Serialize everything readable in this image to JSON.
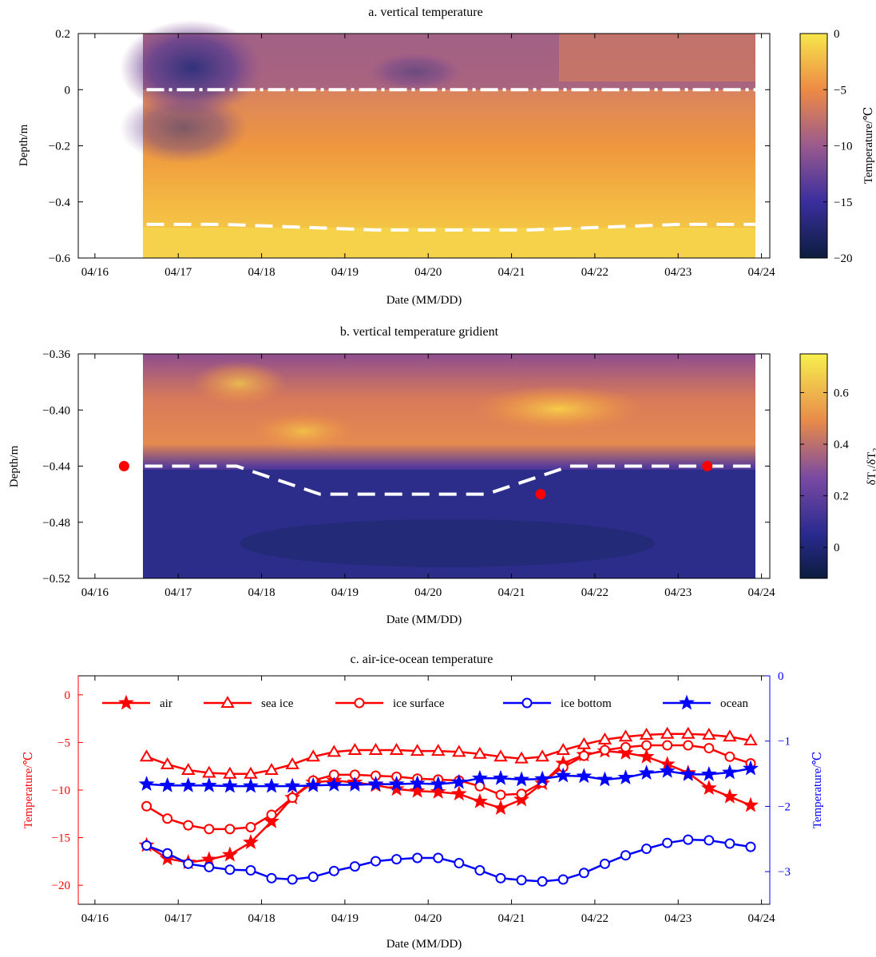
{
  "chart_data": [
    {
      "type": "heatmap",
      "title": "a. vertical temperature",
      "xlabel": "Date (MM/DD)",
      "ylabel": "Depth/m",
      "x_ticks": [
        "04/16",
        "04/17",
        "04/18",
        "04/19",
        "04/20",
        "04/21",
        "04/22",
        "04/23",
        "04/24"
      ],
      "y_ticks": [
        "0.2",
        "0",
        "−0.2",
        "−0.4",
        "−0.6"
      ],
      "ylim": [
        -0.6,
        0.2
      ],
      "data_range": [
        "04/16 15:00",
        "04/23 22:00"
      ],
      "colorbar": {
        "label": "Temperature/℃",
        "ticks": [
          "0",
          "−5",
          "−10",
          "−15",
          "−20"
        ],
        "range": [
          -20,
          0
        ]
      },
      "reference_lines": [
        {
          "style": "dash-dot",
          "color": "#ffffff",
          "depth": 0
        },
        {
          "style": "dashed",
          "color": "#ffffff",
          "depths": [
            -0.48,
            -0.48,
            -0.49,
            -0.5,
            -0.5,
            -0.5,
            -0.49,
            -0.48,
            -0.48
          ]
        }
      ]
    },
    {
      "type": "heatmap",
      "title": "b. vertical temperature gridient",
      "xlabel": "Date (MM/DD)",
      "ylabel": "Depth/m",
      "x_ticks": [
        "04/16",
        "04/17",
        "04/18",
        "04/19",
        "04/20",
        "04/21",
        "04/22",
        "04/23",
        "04/24"
      ],
      "y_ticks": [
        "−0.36",
        "−0.40",
        "−0.44",
        "−0.48",
        "−0.52"
      ],
      "ylim": [
        -0.52,
        -0.36
      ],
      "colorbar": {
        "label": "δT₁/δT₂",
        "ticks": [
          "0.6",
          "0.4",
          "0.2",
          "0"
        ],
        "range": [
          -0.12,
          0.75
        ]
      },
      "reference_lines": [
        {
          "style": "dashed",
          "color": "#ffffff",
          "points": [
            [
              16.6,
              -0.44
            ],
            [
              17.7,
              -0.44
            ],
            [
              18.7,
              -0.46
            ],
            [
              20.7,
              -0.46
            ],
            [
              21.7,
              -0.44
            ],
            [
              23.9,
              -0.44
            ]
          ]
        }
      ],
      "markers": [
        {
          "date": 16.35,
          "depth": -0.44,
          "color": "#ff0000"
        },
        {
          "date": 21.35,
          "depth": -0.46,
          "color": "#ff0000"
        },
        {
          "date": 23.35,
          "depth": -0.44,
          "color": "#ff0000"
        }
      ]
    },
    {
      "type": "line",
      "title": "c. air-ice-ocean temperature",
      "xlabel": "Date (MM/DD)",
      "ylabel_left": "Temperature/℃",
      "ylabel_right": "Temperature/℃",
      "left_color": "#ff0000",
      "right_color": "#0000ff",
      "x_ticks": [
        "04/16",
        "04/17",
        "04/18",
        "04/19",
        "04/20",
        "04/21",
        "04/22",
        "04/23",
        "04/24"
      ],
      "y_ticks_left": [
        "0",
        "−5",
        "−10",
        "−15",
        "−20"
      ],
      "y_ticks_right": [
        "0",
        "−1",
        "−2",
        "−3"
      ],
      "ylim_left": [
        -22,
        2
      ],
      "ylim_right": [
        -3.5,
        0
      ],
      "xlim": [
        15.8,
        24.1
      ],
      "x": [
        16.62,
        16.87,
        17.12,
        17.37,
        17.62,
        17.87,
        18.12,
        18.37,
        18.62,
        18.87,
        19.12,
        19.37,
        19.62,
        19.87,
        20.12,
        20.37,
        20.62,
        20.87,
        21.12,
        21.37,
        21.62,
        21.87,
        22.12,
        22.37,
        22.62,
        22.87,
        23.12,
        23.37,
        23.62,
        23.87
      ],
      "series": [
        {
          "name": "air",
          "axis": "left",
          "color": "#ff0000",
          "marker": "star",
          "values": [
            -15.8,
            -17.2,
            -17.6,
            -17.3,
            -16.8,
            -15.5,
            -13.3,
            -10.8,
            -9.2,
            -9.0,
            -9.2,
            -9.5,
            -9.9,
            -10.1,
            -10.2,
            -10.4,
            -11.2,
            -11.9,
            -11.0,
            -9.3,
            -7.2,
            -6.3,
            -5.9,
            -6.1,
            -6.5,
            -7.3,
            -8.2,
            -9.8,
            -10.7,
            -11.6
          ]
        },
        {
          "name": "sea ice",
          "axis": "left",
          "color": "#ff0000",
          "marker": "triangle",
          "values": [
            -6.5,
            -7.3,
            -7.9,
            -8.2,
            -8.3,
            -8.3,
            -7.9,
            -7.3,
            -6.5,
            -6.0,
            -5.8,
            -5.8,
            -5.8,
            -5.9,
            -5.9,
            -6.0,
            -6.2,
            -6.5,
            -6.7,
            -6.5,
            -5.8,
            -5.2,
            -4.7,
            -4.4,
            -4.2,
            -4.1,
            -4.1,
            -4.2,
            -4.4,
            -4.8
          ]
        },
        {
          "name": "ice surface",
          "axis": "left",
          "color": "#ff0000",
          "marker": "circle",
          "values": [
            -11.7,
            -13.0,
            -13.7,
            -14.1,
            -14.1,
            -13.9,
            -12.6,
            -10.8,
            -9.0,
            -8.4,
            -8.4,
            -8.5,
            -8.6,
            -8.8,
            -8.9,
            -9.0,
            -9.6,
            -10.5,
            -10.4,
            -9.2,
            -7.6,
            -6.4,
            -5.8,
            -5.5,
            -5.3,
            -5.3,
            -5.3,
            -5.6,
            -6.5,
            -7.2
          ]
        },
        {
          "name": "ice bottom",
          "axis": "right",
          "color": "#0000ff",
          "marker": "circle",
          "values": [
            -2.6,
            -2.72,
            -2.88,
            -2.93,
            -2.97,
            -2.98,
            -3.1,
            -3.12,
            -3.08,
            -2.99,
            -2.92,
            -2.84,
            -2.81,
            -2.79,
            -2.79,
            -2.87,
            -2.98,
            -3.1,
            -3.13,
            -3.15,
            -3.12,
            -3.02,
            -2.88,
            -2.75,
            -2.65,
            -2.56,
            -2.51,
            -2.52,
            -2.57,
            -2.62
          ]
        },
        {
          "name": "ocean",
          "axis": "right",
          "color": "#0000ff",
          "marker": "star",
          "values": [
            -1.66,
            -1.68,
            -1.68,
            -1.68,
            -1.69,
            -1.69,
            -1.69,
            -1.69,
            -1.68,
            -1.67,
            -1.67,
            -1.66,
            -1.66,
            -1.65,
            -1.66,
            -1.63,
            -1.57,
            -1.57,
            -1.59,
            -1.58,
            -1.53,
            -1.54,
            -1.59,
            -1.56,
            -1.49,
            -1.46,
            -1.51,
            -1.51,
            -1.48,
            -1.42
          ]
        }
      ]
    }
  ]
}
